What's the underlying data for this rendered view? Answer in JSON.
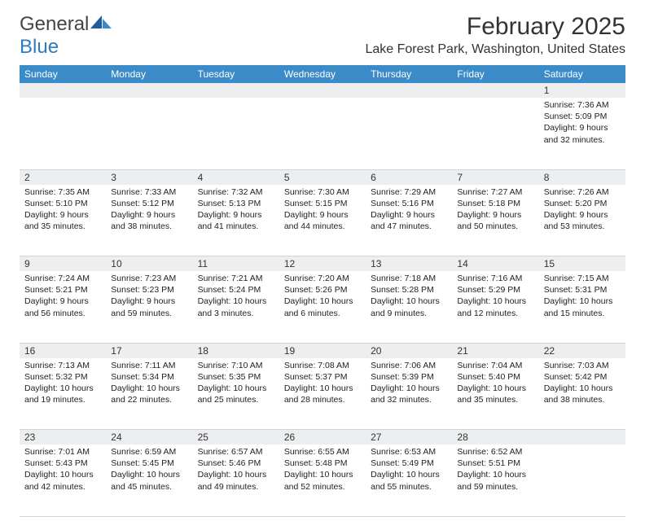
{
  "brand": {
    "part1": "General",
    "part2": "Blue"
  },
  "title": "February 2025",
  "location": "Lake Forest Park, Washington, United States",
  "colors": {
    "header_bg": "#3b8bc9",
    "header_text": "#ffffff",
    "daynum_bg": "#eceef0",
    "text": "#222222",
    "rule": "#cfd6db",
    "brand_blue": "#2f7bbf"
  },
  "layout": {
    "cols": 7,
    "rows": 5
  },
  "weekdays": [
    "Sunday",
    "Monday",
    "Tuesday",
    "Wednesday",
    "Thursday",
    "Friday",
    "Saturday"
  ],
  "weeks": [
    [
      null,
      null,
      null,
      null,
      null,
      null,
      {
        "n": "1",
        "sunrise": "Sunrise: 7:36 AM",
        "sunset": "Sunset: 5:09 PM",
        "daylight": "Daylight: 9 hours and 32 minutes."
      }
    ],
    [
      {
        "n": "2",
        "sunrise": "Sunrise: 7:35 AM",
        "sunset": "Sunset: 5:10 PM",
        "daylight": "Daylight: 9 hours and 35 minutes."
      },
      {
        "n": "3",
        "sunrise": "Sunrise: 7:33 AM",
        "sunset": "Sunset: 5:12 PM",
        "daylight": "Daylight: 9 hours and 38 minutes."
      },
      {
        "n": "4",
        "sunrise": "Sunrise: 7:32 AM",
        "sunset": "Sunset: 5:13 PM",
        "daylight": "Daylight: 9 hours and 41 minutes."
      },
      {
        "n": "5",
        "sunrise": "Sunrise: 7:30 AM",
        "sunset": "Sunset: 5:15 PM",
        "daylight": "Daylight: 9 hours and 44 minutes."
      },
      {
        "n": "6",
        "sunrise": "Sunrise: 7:29 AM",
        "sunset": "Sunset: 5:16 PM",
        "daylight": "Daylight: 9 hours and 47 minutes."
      },
      {
        "n": "7",
        "sunrise": "Sunrise: 7:27 AM",
        "sunset": "Sunset: 5:18 PM",
        "daylight": "Daylight: 9 hours and 50 minutes."
      },
      {
        "n": "8",
        "sunrise": "Sunrise: 7:26 AM",
        "sunset": "Sunset: 5:20 PM",
        "daylight": "Daylight: 9 hours and 53 minutes."
      }
    ],
    [
      {
        "n": "9",
        "sunrise": "Sunrise: 7:24 AM",
        "sunset": "Sunset: 5:21 PM",
        "daylight": "Daylight: 9 hours and 56 minutes."
      },
      {
        "n": "10",
        "sunrise": "Sunrise: 7:23 AM",
        "sunset": "Sunset: 5:23 PM",
        "daylight": "Daylight: 9 hours and 59 minutes."
      },
      {
        "n": "11",
        "sunrise": "Sunrise: 7:21 AM",
        "sunset": "Sunset: 5:24 PM",
        "daylight": "Daylight: 10 hours and 3 minutes."
      },
      {
        "n": "12",
        "sunrise": "Sunrise: 7:20 AM",
        "sunset": "Sunset: 5:26 PM",
        "daylight": "Daylight: 10 hours and 6 minutes."
      },
      {
        "n": "13",
        "sunrise": "Sunrise: 7:18 AM",
        "sunset": "Sunset: 5:28 PM",
        "daylight": "Daylight: 10 hours and 9 minutes."
      },
      {
        "n": "14",
        "sunrise": "Sunrise: 7:16 AM",
        "sunset": "Sunset: 5:29 PM",
        "daylight": "Daylight: 10 hours and 12 minutes."
      },
      {
        "n": "15",
        "sunrise": "Sunrise: 7:15 AM",
        "sunset": "Sunset: 5:31 PM",
        "daylight": "Daylight: 10 hours and 15 minutes."
      }
    ],
    [
      {
        "n": "16",
        "sunrise": "Sunrise: 7:13 AM",
        "sunset": "Sunset: 5:32 PM",
        "daylight": "Daylight: 10 hours and 19 minutes."
      },
      {
        "n": "17",
        "sunrise": "Sunrise: 7:11 AM",
        "sunset": "Sunset: 5:34 PM",
        "daylight": "Daylight: 10 hours and 22 minutes."
      },
      {
        "n": "18",
        "sunrise": "Sunrise: 7:10 AM",
        "sunset": "Sunset: 5:35 PM",
        "daylight": "Daylight: 10 hours and 25 minutes."
      },
      {
        "n": "19",
        "sunrise": "Sunrise: 7:08 AM",
        "sunset": "Sunset: 5:37 PM",
        "daylight": "Daylight: 10 hours and 28 minutes."
      },
      {
        "n": "20",
        "sunrise": "Sunrise: 7:06 AM",
        "sunset": "Sunset: 5:39 PM",
        "daylight": "Daylight: 10 hours and 32 minutes."
      },
      {
        "n": "21",
        "sunrise": "Sunrise: 7:04 AM",
        "sunset": "Sunset: 5:40 PM",
        "daylight": "Daylight: 10 hours and 35 minutes."
      },
      {
        "n": "22",
        "sunrise": "Sunrise: 7:03 AM",
        "sunset": "Sunset: 5:42 PM",
        "daylight": "Daylight: 10 hours and 38 minutes."
      }
    ],
    [
      {
        "n": "23",
        "sunrise": "Sunrise: 7:01 AM",
        "sunset": "Sunset: 5:43 PM",
        "daylight": "Daylight: 10 hours and 42 minutes."
      },
      {
        "n": "24",
        "sunrise": "Sunrise: 6:59 AM",
        "sunset": "Sunset: 5:45 PM",
        "daylight": "Daylight: 10 hours and 45 minutes."
      },
      {
        "n": "25",
        "sunrise": "Sunrise: 6:57 AM",
        "sunset": "Sunset: 5:46 PM",
        "daylight": "Daylight: 10 hours and 49 minutes."
      },
      {
        "n": "26",
        "sunrise": "Sunrise: 6:55 AM",
        "sunset": "Sunset: 5:48 PM",
        "daylight": "Daylight: 10 hours and 52 minutes."
      },
      {
        "n": "27",
        "sunrise": "Sunrise: 6:53 AM",
        "sunset": "Sunset: 5:49 PM",
        "daylight": "Daylight: 10 hours and 55 minutes."
      },
      {
        "n": "28",
        "sunrise": "Sunrise: 6:52 AM",
        "sunset": "Sunset: 5:51 PM",
        "daylight": "Daylight: 10 hours and 59 minutes."
      },
      null
    ]
  ]
}
